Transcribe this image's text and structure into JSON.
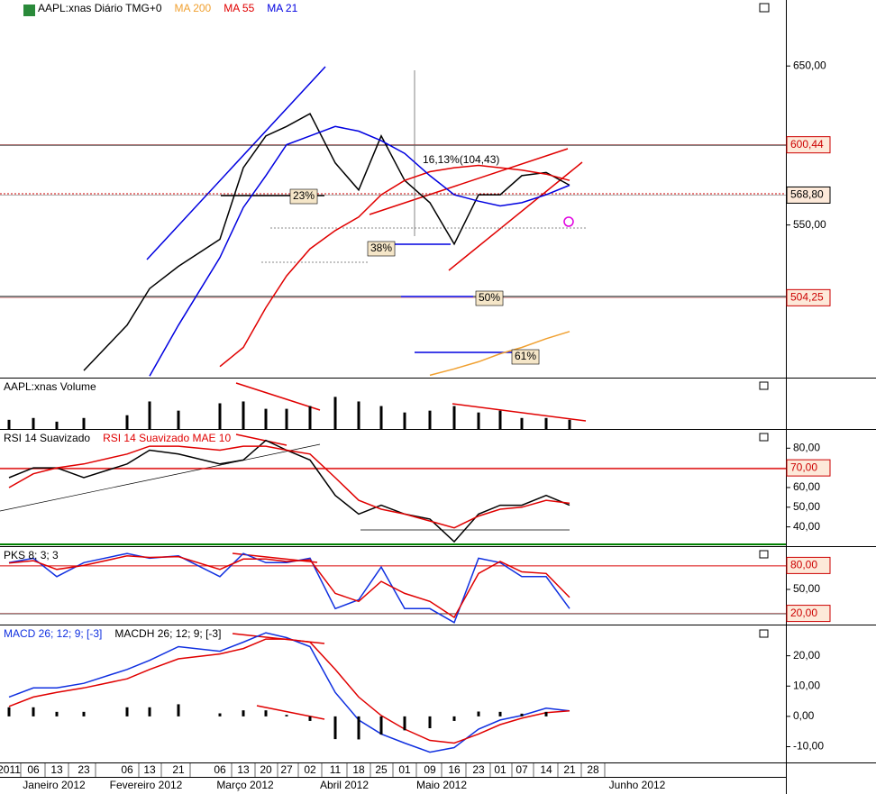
{
  "x_axis": {
    "categories": [
      "2011",
      "06",
      "13",
      "23",
      "06",
      "13",
      "21",
      "06",
      "13",
      "20",
      "27",
      "02",
      "11",
      "18",
      "25",
      "01",
      "09",
      "16",
      "23",
      "01",
      "07",
      "14",
      "21",
      "28"
    ],
    "months": [
      "Janeiro 2012",
      "Fevereiro 2012",
      "Março 2012",
      "Abril 2012",
      "Maio 2012",
      "Junho 2012"
    ]
  },
  "chart_data": [
    {
      "type": "line",
      "title": "AAPL:xnas Diário TMG+0",
      "ylim": [
        454,
        691.5
      ],
      "yticks": [
        {
          "value": 650,
          "label": "650,00"
        },
        {
          "value": 550,
          "label": "550,00"
        }
      ],
      "levels": [
        {
          "value": 600.44,
          "label": "600,44",
          "color": "#cc0000"
        },
        {
          "value": 568.8,
          "label": "568,80",
          "color": "#000000"
        },
        {
          "value": 504.25,
          "label": "504,25",
          "color": "#cc0000"
        }
      ],
      "annotations": [
        "23%",
        "38%",
        "50%",
        "61%",
        "16,13%(104,43)"
      ],
      "series": [
        {
          "color": "#000000",
          "values": [
            null,
            null,
            null,
            458.5,
            487,
            510,
            524,
            541,
            586,
            606,
            612,
            620,
            589,
            572,
            606,
            578,
            564,
            538,
            569,
            569,
            581,
            583,
            575,
            null
          ]
        },
        {
          "name": "MA 200",
          "color": "#f0a030",
          "values": [
            null,
            null,
            null,
            null,
            null,
            null,
            null,
            null,
            null,
            null,
            null,
            null,
            null,
            null,
            null,
            null,
            455.5,
            459.5,
            464,
            469,
            473,
            478.5,
            483,
            null
          ]
        },
        {
          "name": "MA 55",
          "color": "#e00000",
          "values": [
            null,
            null,
            null,
            null,
            null,
            null,
            null,
            461,
            473,
            498,
            518,
            535,
            546.5,
            555,
            569,
            578,
            583.5,
            586,
            587.5,
            586,
            584.5,
            582,
            578,
            null
          ]
        },
        {
          "name": "MA 21",
          "color": "#0000e0",
          "values": [
            null,
            null,
            null,
            null,
            null,
            455,
            487,
            529.5,
            561,
            581,
            600.5,
            606,
            612,
            609,
            603,
            595,
            581,
            569,
            565,
            562,
            564,
            569,
            575,
            null
          ]
        }
      ]
    },
    {
      "type": "bar",
      "title": "AAPL:xnas Volume",
      "ylim": [
        0,
        55
      ],
      "series": [
        {
          "color": "#000000",
          "values": [
            10,
            12,
            8,
            12,
            15,
            30,
            20,
            28,
            30,
            22,
            22,
            25,
            35,
            30,
            25,
            18,
            20,
            25,
            18,
            20,
            12,
            12,
            10,
            null
          ]
        }
      ]
    },
    {
      "type": "line",
      "ylim": [
        30.2,
        89.3
      ],
      "yticks": [
        {
          "value": 80,
          "label": "80,00"
        },
        {
          "value": 60,
          "label": "60,00"
        },
        {
          "value": 50,
          "label": "50,00"
        },
        {
          "value": 40,
          "label": "40,00"
        }
      ],
      "levels": [
        {
          "value": 70,
          "label": "70,00",
          "color": "#cc0000"
        }
      ],
      "series": [
        {
          "name": "RSI 14 Suavizado",
          "color": "#000000",
          "values": [
            65,
            70,
            70,
            65,
            72,
            79,
            77,
            72,
            74,
            84,
            79,
            74,
            56,
            46.5,
            51,
            46.5,
            44,
            32.5,
            46.5,
            51,
            51,
            56,
            51,
            null
          ]
        },
        {
          "name": "RSI 14 Suavizado MAE 10",
          "color": "#e00000",
          "values": [
            60,
            67,
            70,
            72,
            77,
            81,
            81,
            79,
            81,
            81,
            79,
            77,
            65,
            53.5,
            49,
            46.5,
            43,
            39.5,
            45.5,
            49,
            50,
            53.5,
            52,
            null
          ]
        }
      ]
    },
    {
      "type": "line",
      "title": "PKS 8; 3; 3",
      "ylim": [
        6,
        103
      ],
      "yticks": [
        {
          "value": 50,
          "label": "50,00"
        }
      ],
      "levels": [
        {
          "value": 80,
          "label": "80,00",
          "color": "#cc0000"
        },
        {
          "value": 20,
          "label": "20,00",
          "color": "#cc0000"
        }
      ],
      "series": [
        {
          "color": "#1030e0",
          "values": [
            83.5,
            89,
            66,
            83.5,
            95,
            89,
            92,
            66,
            95,
            83.5,
            83.5,
            89,
            26,
            37,
            78,
            26,
            26,
            8.5,
            89,
            83.5,
            66,
            66,
            26,
            null
          ]
        },
        {
          "color": "#e00000",
          "values": [
            83,
            86,
            75,
            80,
            92,
            90,
            91,
            75,
            88,
            88,
            85,
            87,
            45,
            35,
            60,
            45,
            35,
            15,
            70,
            85,
            72,
            70,
            40,
            null
          ]
        }
      ]
    },
    {
      "type": "line",
      "ylim": [
        -15.2,
        30
      ],
      "yticks": [
        {
          "value": 20,
          "label": "20,00"
        },
        {
          "value": 10,
          "label": "10,00"
        },
        {
          "value": 0,
          "label": "0,00"
        },
        {
          "value": -10,
          "label": "-10,00"
        }
      ],
      "series": [
        {
          "name": "MACD 26; 12; 9; [-3]",
          "color": "#1030e0",
          "values": [
            6.4,
            9.4,
            9.4,
            10.9,
            15.5,
            18.5,
            23,
            21.5,
            24.5,
            27.6,
            26,
            23,
            7.9,
            -1.2,
            -5.8,
            -8.8,
            -11.8,
            -10.3,
            -4.2,
            -1.2,
            0.3,
            2.7,
            1.8,
            null
          ]
        },
        {
          "color": "#e00000",
          "values": [
            3.3,
            6.4,
            7.9,
            9.4,
            12.4,
            15.5,
            19,
            20.6,
            22.4,
            25.5,
            25.5,
            24.5,
            15.5,
            6.4,
            0.3,
            -4.2,
            -7.9,
            -8.8,
            -5.8,
            -2.7,
            -0.6,
            1.2,
            1.8,
            null
          ]
        },
        {
          "name": "MACDH 26; 12; 9; [-3]",
          "type": "bar",
          "color": "#000000",
          "values": [
            3,
            3,
            1.5,
            1.5,
            3,
            3,
            4,
            1,
            2,
            2,
            0.5,
            -1.5,
            -7.5,
            -7.6,
            -6,
            -4.6,
            -3.9,
            -1.5,
            1.6,
            1.5,
            0.9,
            1.5,
            0,
            null
          ]
        }
      ]
    }
  ]
}
